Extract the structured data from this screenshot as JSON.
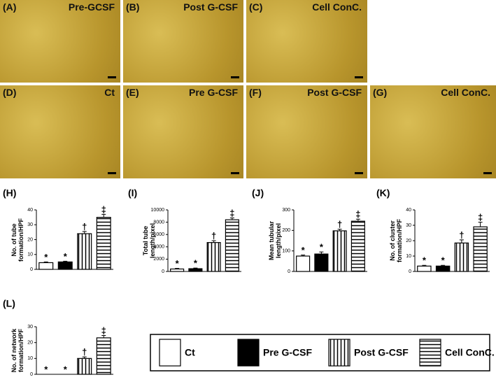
{
  "images": [
    {
      "label": "(A)",
      "caption": "Pre-GCSF"
    },
    {
      "label": "(B)",
      "caption": "Post G-CSF"
    },
    {
      "label": "(C)",
      "caption": "Cell ConC."
    },
    {
      "label": "(D)",
      "caption": "Ct"
    },
    {
      "label": "(E)",
      "caption": "Pre G-CSF"
    },
    {
      "label": "(F)",
      "caption": "Post G-CSF"
    },
    {
      "label": "(G)",
      "caption": "Cell ConC."
    }
  ],
  "legend": {
    "items": [
      {
        "name": "Ct",
        "pattern": "white"
      },
      {
        "name": "Pre G-CSF",
        "pattern": "black"
      },
      {
        "name": "Post G-CSF",
        "pattern": "vertical"
      },
      {
        "name": "Cell ConC.",
        "pattern": "horizontal"
      }
    ]
  },
  "chart_data": [
    {
      "type": "bar",
      "label": "(H)",
      "y_label": "No. of tube formation/HPF",
      "values": [
        4.5,
        5,
        24,
        35
      ],
      "errors": [
        0.5,
        0.5,
        1.5,
        2
      ],
      "markers": [
        "*",
        "*",
        "†",
        "‡"
      ],
      "ylim": [
        0,
        40
      ],
      "yticks": [
        0,
        10,
        20,
        30,
        40
      ]
    },
    {
      "type": "bar",
      "label": "(I)",
      "y_label": "Total tube length/pixel",
      "values": [
        400,
        450,
        4700,
        8400
      ],
      "errors": [
        100,
        100,
        300,
        300
      ],
      "markers": [
        "*",
        "*",
        "†",
        "‡"
      ],
      "ylim": [
        0,
        10000
      ],
      "yticks": [
        0,
        2000,
        4000,
        6000,
        8000,
        10000
      ]
    },
    {
      "type": "bar",
      "label": "(J)",
      "y_label": "Mean tubular length/pixel",
      "values": [
        75,
        85,
        198,
        245
      ],
      "errors": [
        5,
        10,
        8,
        10
      ],
      "markers": [
        "*",
        "*",
        "†",
        "‡"
      ],
      "ylim": [
        0,
        300
      ],
      "yticks": [
        0,
        100,
        200,
        300
      ]
    },
    {
      "type": "bar",
      "label": "(K)",
      "y_label": "No. of cluster formation/HPF",
      "values": [
        3.5,
        3.5,
        18.5,
        29
      ],
      "errors": [
        0.5,
        0.5,
        2,
        3
      ],
      "markers": [
        "*",
        "*",
        "†",
        "‡"
      ],
      "ylim": [
        0,
        40
      ],
      "yticks": [
        0,
        10,
        20,
        30,
        40
      ]
    },
    {
      "type": "bar",
      "label": "(L)",
      "y_label": "No. of network formation/HPF",
      "values": [
        0,
        0,
        10,
        23
      ],
      "errors": [
        0,
        0,
        1,
        1.5
      ],
      "markers": [
        "*",
        "*",
        "†",
        "‡"
      ],
      "ylim": [
        0,
        30
      ],
      "yticks": [
        0,
        10,
        20,
        30
      ]
    }
  ]
}
